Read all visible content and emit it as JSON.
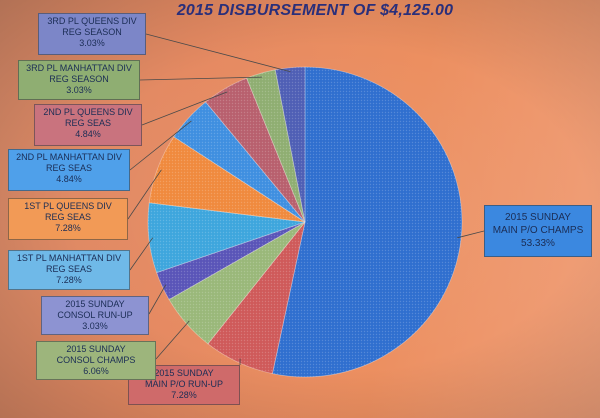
{
  "chart_data": {
    "type": "pie",
    "title": "2015 DISBURSEMENT OF $4,125.00",
    "slices": [
      {
        "name": "2015 SUNDAY MAIN P/O CHAMPS",
        "line1": "2015 SUNDAY",
        "line2": "MAIN P/O CHAMPS",
        "pct_label": "53.33%",
        "value": 53.33,
        "color": "#2f6fcf"
      },
      {
        "name": "2015 SUNDAY MAIN P/O RUN-UP",
        "line1": "2015 SUNDAY",
        "line2": "MAIN P/O RUN-UP",
        "pct_label": "7.28%",
        "value": 7.28,
        "color": "#cf5a5a"
      },
      {
        "name": "2015 SUNDAY CONSOL CHAMPS",
        "line1": "2015 SUNDAY",
        "line2": "CONSOL CHAMPS",
        "pct_label": "6.06%",
        "value": 6.06,
        "color": "#9ab87a"
      },
      {
        "name": "2015 SUNDAY CONSOL RUN-UP",
        "line1": "2015 SUNDAY",
        "line2": "CONSOL RUN-UP",
        "pct_label": "3.03%",
        "value": 3.03,
        "color": "#5a55b8"
      },
      {
        "name": "1st PL MANHATTAN DIV REG SEAS",
        "line1": "1st PL MANHATTAN DIV",
        "line2": "REG SEAS",
        "pct_label": "7.28%",
        "value": 7.28,
        "color": "#3ea6dd"
      },
      {
        "name": "1st PL QUEENS DIV REG SEAS",
        "line1": "1st PL QUEENS DIV",
        "line2": "REG SEAS",
        "pct_label": "7.28%",
        "value": 7.28,
        "color": "#f08a3e"
      },
      {
        "name": "2nd PL MANHATTAN DIV REG SEAS",
        "line1": "2nd PL MANHATTAN DIV",
        "line2": "REG SEAS",
        "pct_label": "4.84%",
        "value": 4.84,
        "color": "#3f8fe0"
      },
      {
        "name": "2nd PL QUEENS DIV REG SEAS",
        "line1": "2nd PL QUEENS DIV",
        "line2": "REG SEAS",
        "pct_label": "4.84%",
        "value": 4.84,
        "color": "#b8606e"
      },
      {
        "name": "3rd PL MANHATTAN DIV REG SEASON",
        "line1": "3rd PL MANHATTAN DIV",
        "line2": "REG SEASON",
        "pct_label": "3.03%",
        "value": 3.03,
        "color": "#8fae72"
      },
      {
        "name": "3rd PL QUEENS DIV REG SEASON",
        "line1": "3rd PL QUEENS DIV",
        "line2": "REG SEASON",
        "pct_label": "3.03%",
        "value": 3.03,
        "color": "#4f5fb5"
      }
    ],
    "label_colors": [
      "#3b88e0",
      "#cf6a6a",
      "#9db57c",
      "#8d93d2",
      "#6fb9e8",
      "#f29a56",
      "#4fa0ea",
      "#c9737e",
      "#8fae72",
      "#7c86c8"
    ]
  }
}
